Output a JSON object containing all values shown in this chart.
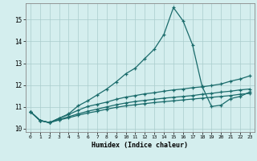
{
  "xlabel": "Humidex (Indice chaleur)",
  "background_color": "#d4eeee",
  "grid_color": "#aacccc",
  "line_color": "#1a6b6b",
  "xlim": [
    -0.5,
    23.5
  ],
  "ylim": [
    9.85,
    15.75
  ],
  "xticks": [
    0,
    1,
    2,
    3,
    4,
    5,
    6,
    7,
    8,
    9,
    10,
    11,
    12,
    13,
    14,
    15,
    16,
    17,
    18,
    19,
    20,
    21,
    22,
    23
  ],
  "yticks": [
    10,
    11,
    12,
    13,
    14,
    15
  ],
  "line1": [
    10.78,
    10.38,
    10.28,
    10.48,
    10.68,
    11.05,
    11.28,
    11.55,
    11.82,
    12.15,
    12.52,
    12.78,
    13.22,
    13.65,
    14.32,
    15.55,
    14.95,
    13.85,
    11.95,
    11.02,
    11.08,
    11.38,
    11.48,
    11.68
  ],
  "line2": [
    10.78,
    10.38,
    10.28,
    10.48,
    10.65,
    10.85,
    11.02,
    11.12,
    11.22,
    11.35,
    11.45,
    11.52,
    11.6,
    11.65,
    11.72,
    11.78,
    11.82,
    11.88,
    11.92,
    11.98,
    12.05,
    12.18,
    12.28,
    12.42
  ],
  "line3": [
    10.78,
    10.38,
    10.28,
    10.42,
    10.55,
    10.68,
    10.8,
    10.9,
    11.0,
    11.1,
    11.18,
    11.25,
    11.3,
    11.35,
    11.4,
    11.44,
    11.48,
    11.52,
    11.58,
    11.62,
    11.68,
    11.72,
    11.78,
    11.82
  ],
  "line4": [
    10.78,
    10.38,
    10.28,
    10.4,
    10.5,
    10.62,
    10.72,
    10.8,
    10.9,
    10.98,
    11.05,
    11.1,
    11.15,
    11.2,
    11.24,
    11.28,
    11.32,
    11.36,
    11.4,
    11.44,
    11.48,
    11.52,
    11.58,
    11.62
  ]
}
